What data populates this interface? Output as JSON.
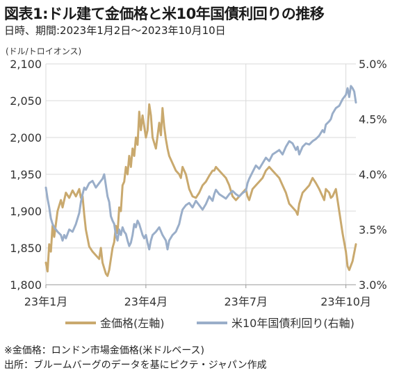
{
  "title": "図表1:ドル建て金価格と米10年国債利回りの推移",
  "subtitle": "日時、期間:2023年1月2日～2023年10月10日",
  "notes": [
    "※金価格：ロンドン市場金価格(米ドルベース)",
    "出所：ブルームバーグのデータを基にピクテ・ジャパン作成"
  ],
  "chart_data": {
    "type": "line",
    "left_axis_unit": "(ドル/トロイオンス)",
    "left_axis": {
      "min": 1800,
      "max": 2100,
      "ticks": [
        "1,800",
        "1,850",
        "1,900",
        "1,950",
        "2,000",
        "2,050",
        "2,100"
      ]
    },
    "right_axis": {
      "min": 3.0,
      "max": 5.0,
      "ticks": [
        "3.0%",
        "3.5%",
        "4.0%",
        "4.5%",
        "5.0%"
      ]
    },
    "x_range": [
      0,
      9.3
    ],
    "x_ticks": [
      {
        "label": "23年1月",
        "pos": 0
      },
      {
        "label": "23年4月",
        "pos": 3
      },
      {
        "label": "23年7月",
        "pos": 6
      },
      {
        "label": "23年10月",
        "pos": 9
      }
    ],
    "grid": true,
    "legend_position": "bottom",
    "series": [
      {
        "name": "金価格(左軸)",
        "axis": "left",
        "color": "#c9a96e",
        "points": [
          [
            0.0,
            1830
          ],
          [
            0.05,
            1818
          ],
          [
            0.1,
            1855
          ],
          [
            0.15,
            1845
          ],
          [
            0.2,
            1880
          ],
          [
            0.25,
            1865
          ],
          [
            0.35,
            1900
          ],
          [
            0.45,
            1915
          ],
          [
            0.5,
            1905
          ],
          [
            0.6,
            1925
          ],
          [
            0.7,
            1918
          ],
          [
            0.8,
            1928
          ],
          [
            0.9,
            1920
          ],
          [
            1.0,
            1930
          ],
          [
            1.05,
            1918
          ],
          [
            1.1,
            1920
          ],
          [
            1.15,
            1895
          ],
          [
            1.2,
            1875
          ],
          [
            1.3,
            1852
          ],
          [
            1.4,
            1845
          ],
          [
            1.5,
            1840
          ],
          [
            1.6,
            1835
          ],
          [
            1.65,
            1850
          ],
          [
            1.7,
            1830
          ],
          [
            1.8,
            1815
          ],
          [
            1.85,
            1812
          ],
          [
            1.9,
            1820
          ],
          [
            1.95,
            1835
          ],
          [
            2.0,
            1850
          ],
          [
            2.05,
            1858
          ],
          [
            2.1,
            1880
          ],
          [
            2.15,
            1870
          ],
          [
            2.2,
            1905
          ],
          [
            2.25,
            1900
          ],
          [
            2.3,
            1935
          ],
          [
            2.35,
            1940
          ],
          [
            2.4,
            1960
          ],
          [
            2.45,
            1950
          ],
          [
            2.5,
            1975
          ],
          [
            2.55,
            1960
          ],
          [
            2.6,
            1985
          ],
          [
            2.65,
            1975
          ],
          [
            2.7,
            2000
          ],
          [
            2.75,
            1990
          ],
          [
            2.8,
            2035
          ],
          [
            2.85,
            2010
          ],
          [
            2.9,
            2030
          ],
          [
            2.95,
            2015
          ],
          [
            3.0,
            2000
          ],
          [
            3.05,
            2010
          ],
          [
            3.1,
            2045
          ],
          [
            3.15,
            2030
          ],
          [
            3.2,
            2000
          ],
          [
            3.3,
            1985
          ],
          [
            3.4,
            2020
          ],
          [
            3.45,
            2003
          ],
          [
            3.5,
            2040
          ],
          [
            3.55,
            2015
          ],
          [
            3.6,
            1998
          ],
          [
            3.65,
            1985
          ],
          [
            3.7,
            1975
          ],
          [
            3.8,
            1965
          ],
          [
            3.9,
            1955
          ],
          [
            4.0,
            1950
          ],
          [
            4.05,
            1945
          ],
          [
            4.1,
            1960
          ],
          [
            4.2,
            1950
          ],
          [
            4.3,
            1930
          ],
          [
            4.4,
            1920
          ],
          [
            4.5,
            1918
          ],
          [
            4.6,
            1925
          ],
          [
            4.7,
            1935
          ],
          [
            4.8,
            1940
          ],
          [
            4.9,
            1948
          ],
          [
            5.0,
            1955
          ],
          [
            5.05,
            1955
          ],
          [
            5.1,
            1960
          ],
          [
            5.2,
            1955
          ],
          [
            5.3,
            1950
          ],
          [
            5.4,
            1945
          ],
          [
            5.5,
            1935
          ],
          [
            5.6,
            1920
          ],
          [
            5.7,
            1915
          ],
          [
            5.8,
            1920
          ],
          [
            5.9,
            1925
          ],
          [
            6.0,
            1930
          ],
          [
            6.05,
            1920
          ],
          [
            6.1,
            1915
          ],
          [
            6.2,
            1930
          ],
          [
            6.3,
            1935
          ],
          [
            6.4,
            1940
          ],
          [
            6.5,
            1945
          ],
          [
            6.6,
            1955
          ],
          [
            6.7,
            1960
          ],
          [
            6.8,
            1955
          ],
          [
            6.9,
            1950
          ],
          [
            7.0,
            1945
          ],
          [
            7.1,
            1935
          ],
          [
            7.2,
            1925
          ],
          [
            7.3,
            1910
          ],
          [
            7.4,
            1905
          ],
          [
            7.5,
            1900
          ],
          [
            7.55,
            1895
          ],
          [
            7.6,
            1910
          ],
          [
            7.7,
            1925
          ],
          [
            7.8,
            1930
          ],
          [
            7.9,
            1935
          ],
          [
            8.0,
            1945
          ],
          [
            8.1,
            1938
          ],
          [
            8.2,
            1930
          ],
          [
            8.3,
            1920
          ],
          [
            8.35,
            1915
          ],
          [
            8.4,
            1930
          ],
          [
            8.5,
            1925
          ],
          [
            8.55,
            1918
          ],
          [
            8.6,
            1920
          ],
          [
            8.7,
            1930
          ],
          [
            8.8,
            1900
          ],
          [
            8.9,
            1870
          ],
          [
            9.0,
            1845
          ],
          [
            9.05,
            1825
          ],
          [
            9.1,
            1820
          ],
          [
            9.2,
            1832
          ],
          [
            9.3,
            1855
          ]
        ]
      },
      {
        "name": "米10年国債利回り(右軸)",
        "axis": "right",
        "color": "#9aaec9",
        "points": [
          [
            0.0,
            3.88
          ],
          [
            0.05,
            3.78
          ],
          [
            0.1,
            3.7
          ],
          [
            0.15,
            3.6
          ],
          [
            0.2,
            3.55
          ],
          [
            0.25,
            3.52
          ],
          [
            0.35,
            3.48
          ],
          [
            0.45,
            3.45
          ],
          [
            0.5,
            3.4
          ],
          [
            0.55,
            3.45
          ],
          [
            0.6,
            3.42
          ],
          [
            0.7,
            3.5
          ],
          [
            0.8,
            3.48
          ],
          [
            0.9,
            3.55
          ],
          [
            1.0,
            3.65
          ],
          [
            1.05,
            3.75
          ],
          [
            1.1,
            3.82
          ],
          [
            1.15,
            3.88
          ],
          [
            1.2,
            3.86
          ],
          [
            1.3,
            3.92
          ],
          [
            1.4,
            3.94
          ],
          [
            1.5,
            3.88
          ],
          [
            1.6,
            3.92
          ],
          [
            1.65,
            3.94
          ],
          [
            1.7,
            3.96
          ],
          [
            1.75,
            4.0
          ],
          [
            1.8,
            3.9
          ],
          [
            1.85,
            3.8
          ],
          [
            1.9,
            3.75
          ],
          [
            1.95,
            3.62
          ],
          [
            2.0,
            3.58
          ],
          [
            2.05,
            3.55
          ],
          [
            2.1,
            3.45
          ],
          [
            2.15,
            3.4
          ],
          [
            2.2,
            3.5
          ],
          [
            2.25,
            3.45
          ],
          [
            2.3,
            3.52
          ],
          [
            2.35,
            3.48
          ],
          [
            2.4,
            3.46
          ],
          [
            2.45,
            3.4
          ],
          [
            2.5,
            3.35
          ],
          [
            2.55,
            3.38
          ],
          [
            2.6,
            3.45
          ],
          [
            2.65,
            3.55
          ],
          [
            2.7,
            3.52
          ],
          [
            2.75,
            3.58
          ],
          [
            2.8,
            3.55
          ],
          [
            2.85,
            3.5
          ],
          [
            2.9,
            3.45
          ],
          [
            2.95,
            3.42
          ],
          [
            3.0,
            3.45
          ],
          [
            3.05,
            3.38
          ],
          [
            3.1,
            3.32
          ],
          [
            3.15,
            3.4
          ],
          [
            3.2,
            3.45
          ],
          [
            3.3,
            3.48
          ],
          [
            3.4,
            3.52
          ],
          [
            3.5,
            3.45
          ],
          [
            3.6,
            3.4
          ],
          [
            3.65,
            3.32
          ],
          [
            3.7,
            3.4
          ],
          [
            3.8,
            3.45
          ],
          [
            3.9,
            3.48
          ],
          [
            4.0,
            3.55
          ],
          [
            4.05,
            3.62
          ],
          [
            4.1,
            3.68
          ],
          [
            4.2,
            3.72
          ],
          [
            4.3,
            3.74
          ],
          [
            4.4,
            3.7
          ],
          [
            4.5,
            3.76
          ],
          [
            4.6,
            3.72
          ],
          [
            4.7,
            3.68
          ],
          [
            4.8,
            3.73
          ],
          [
            4.9,
            3.8
          ],
          [
            5.0,
            3.76
          ],
          [
            5.05,
            3.82
          ],
          [
            5.1,
            3.86
          ],
          [
            5.2,
            3.82
          ],
          [
            5.3,
            3.8
          ],
          [
            5.4,
            3.78
          ],
          [
            5.5,
            3.82
          ],
          [
            5.6,
            3.85
          ],
          [
            5.7,
            3.82
          ],
          [
            5.8,
            3.8
          ],
          [
            5.9,
            3.83
          ],
          [
            6.0,
            3.85
          ],
          [
            6.05,
            3.92
          ],
          [
            6.1,
            3.96
          ],
          [
            6.2,
            4.02
          ],
          [
            6.3,
            4.08
          ],
          [
            6.4,
            4.05
          ],
          [
            6.5,
            4.1
          ],
          [
            6.6,
            4.15
          ],
          [
            6.7,
            4.12
          ],
          [
            6.8,
            4.18
          ],
          [
            6.9,
            4.2
          ],
          [
            7.0,
            4.22
          ],
          [
            7.1,
            4.18
          ],
          [
            7.2,
            4.25
          ],
          [
            7.3,
            4.3
          ],
          [
            7.4,
            4.28
          ],
          [
            7.5,
            4.22
          ],
          [
            7.55,
            4.25
          ],
          [
            7.6,
            4.18
          ],
          [
            7.7,
            4.25
          ],
          [
            7.8,
            4.28
          ],
          [
            7.9,
            4.27
          ],
          [
            8.0,
            4.3
          ],
          [
            8.1,
            4.32
          ],
          [
            8.2,
            4.35
          ],
          [
            8.3,
            4.4
          ],
          [
            8.35,
            4.38
          ],
          [
            8.4,
            4.45
          ],
          [
            8.5,
            4.48
          ],
          [
            8.55,
            4.5
          ],
          [
            8.6,
            4.55
          ],
          [
            8.7,
            4.6
          ],
          [
            8.8,
            4.62
          ],
          [
            8.9,
            4.68
          ],
          [
            9.0,
            4.72
          ],
          [
            9.05,
            4.78
          ],
          [
            9.1,
            4.7
          ],
          [
            9.15,
            4.8
          ],
          [
            9.2,
            4.78
          ],
          [
            9.25,
            4.75
          ],
          [
            9.3,
            4.65
          ]
        ]
      }
    ]
  }
}
